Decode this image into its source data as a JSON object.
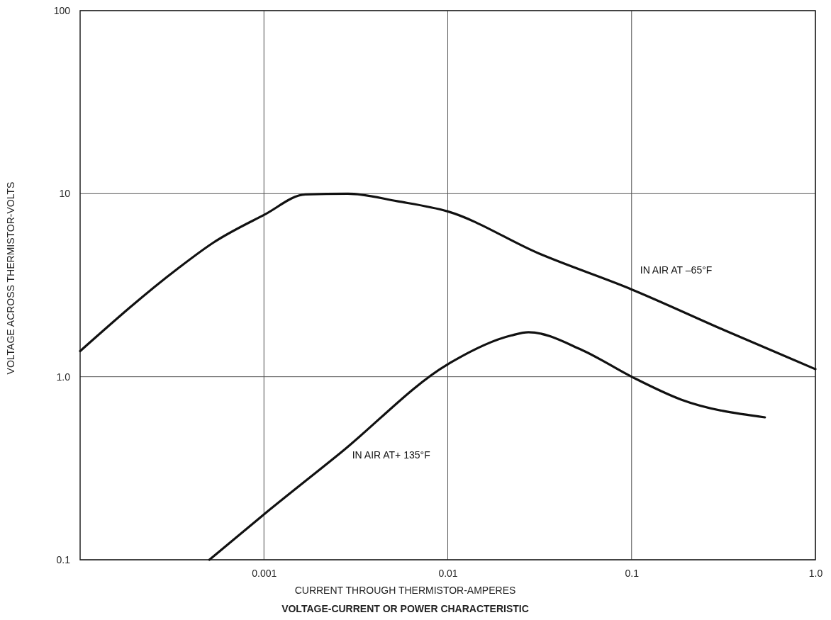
{
  "chart_data": {
    "type": "line",
    "title": "VOLTAGE-CURRENT OR POWER CHARACTERISTIC",
    "xlabel": "CURRENT THROUGH THERMISTOR-AMPERES",
    "ylabel": "VOLTAGE ACROSS THERMISTOR-VOLTS",
    "log": "xy",
    "grid": true,
    "marker": "none",
    "line_style": "solid",
    "xlim": [
      0.0001,
      1
    ],
    "ylim": [
      0.1,
      100
    ],
    "xticks": [
      0.001,
      0.01,
      0.1,
      {
        "value": 1,
        "label": "1.0"
      }
    ],
    "yticks": [
      0.1,
      {
        "value": 1,
        "label": "1.0"
      },
      10,
      100
    ],
    "series": [
      {
        "name": "IN AIR AT –65°F",
        "color": "#111111",
        "x": [
          0.0001,
          0.00034,
          0.00053,
          0.001,
          0.00168,
          0.00286,
          0.0053,
          0.01,
          0.0315,
          0.1,
          0.318,
          1
        ],
        "values": [
          1.38,
          3.9,
          5.4,
          7.65,
          9.9,
          10,
          9.1,
          8.0,
          4.7,
          3.0,
          1.8,
          1.1
        ]
      },
      {
        "name": "IN AIR AT+ 135°F",
        "color": "#111111",
        "x": [
          0.000505,
          0.001,
          0.00262,
          0.01,
          0.0221,
          0.0275,
          0.0537,
          0.1,
          0.186,
          0.531
        ],
        "values": [
          0.1,
          0.177,
          0.385,
          1.17,
          1.68,
          1.75,
          1.4,
          1.0,
          0.75,
          0.6
        ]
      }
    ]
  }
}
